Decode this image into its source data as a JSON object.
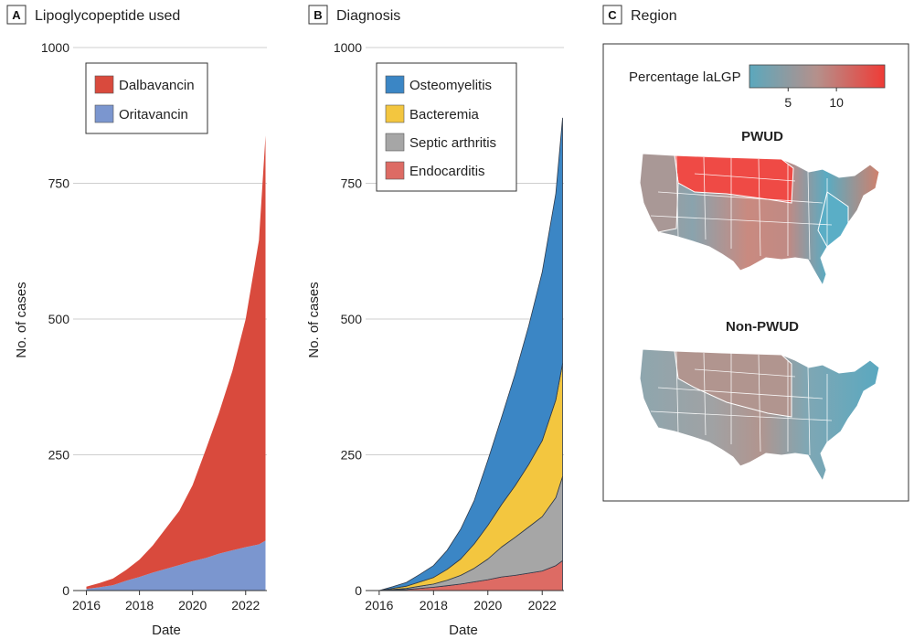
{
  "chart_data": [
    {
      "type": "area",
      "panel": "A",
      "title": "Lipoglycopeptide used",
      "xlabel": "Date",
      "ylabel": "No. of cases",
      "xlim": [
        2015.5,
        2022.8
      ],
      "ylim": [
        0,
        1000
      ],
      "xticks": [
        2016,
        2018,
        2020,
        2022
      ],
      "yticks": [
        0,
        250,
        500,
        750,
        1000
      ],
      "stacked": true,
      "x": [
        2016.0,
        2016.5,
        2017.0,
        2017.5,
        2018.0,
        2018.5,
        2019.0,
        2019.5,
        2020.0,
        2020.5,
        2021.0,
        2021.5,
        2022.0,
        2022.5,
        2022.75
      ],
      "series": [
        {
          "name": "Oritavancin",
          "color": "#7b96cf",
          "values": [
            3,
            6,
            10,
            18,
            25,
            33,
            40,
            47,
            54,
            60,
            68,
            74,
            80,
            85,
            92
          ]
        },
        {
          "name": "Dalbavancin",
          "color": "#d94a3d",
          "values": [
            4,
            8,
            12,
            20,
            32,
            50,
            75,
            100,
            140,
            200,
            260,
            330,
            420,
            560,
            746
          ]
        }
      ],
      "legend": [
        "Dalbavancin",
        "Oritavancin"
      ],
      "legend_position": "top-left"
    },
    {
      "type": "area",
      "panel": "B",
      "title": "Diagnosis",
      "xlabel": "Date",
      "ylabel": "No. of cases",
      "xlim": [
        2015.5,
        2022.8
      ],
      "ylim": [
        0,
        1000
      ],
      "xticks": [
        2016,
        2018,
        2020,
        2022
      ],
      "yticks": [
        0,
        250,
        500,
        750,
        1000
      ],
      "stacked": true,
      "x": [
        2016.0,
        2016.5,
        2017.0,
        2017.5,
        2018.0,
        2018.5,
        2019.0,
        2019.5,
        2020.0,
        2020.5,
        2021.0,
        2021.5,
        2022.0,
        2022.5,
        2022.75
      ],
      "series": [
        {
          "name": "Endocarditis",
          "color": "#dd6b64",
          "values": [
            0,
            1,
            2,
            4,
            6,
            9,
            12,
            16,
            20,
            25,
            28,
            32,
            36,
            46,
            55
          ]
        },
        {
          "name": "Septic arthritis",
          "color": "#a6a6a6",
          "values": [
            0,
            1,
            2,
            4,
            6,
            10,
            16,
            25,
            38,
            55,
            70,
            85,
            100,
            125,
            155
          ]
        },
        {
          "name": "Bacteremia",
          "color": "#f3c63f",
          "values": [
            0,
            2,
            4,
            8,
            12,
            20,
            30,
            45,
            62,
            78,
            95,
            115,
            140,
            180,
            208
          ]
        },
        {
          "name": "Osteomyelitis",
          "color": "#3b86c5",
          "values": [
            0,
            3,
            7,
            14,
            22,
            35,
            55,
            80,
            120,
            160,
            205,
            255,
            310,
            380,
            452
          ]
        }
      ],
      "legend": [
        "Osteomyelitis",
        "Bacteremia",
        "Septic arthritis",
        "Endocarditis"
      ],
      "legend_position": "top-left"
    },
    {
      "type": "map",
      "panel": "C",
      "title": "Region",
      "colorbar": {
        "label": "Percentage laLGP",
        "ticks": [
          5,
          10
        ],
        "range": [
          1,
          15
        ],
        "colors": [
          "#5ba8bd",
          "#b5908b",
          "#ef3b36"
        ]
      },
      "maps": [
        {
          "title": "PWUD"
        },
        {
          "title": "Non-PWUD"
        }
      ]
    }
  ]
}
